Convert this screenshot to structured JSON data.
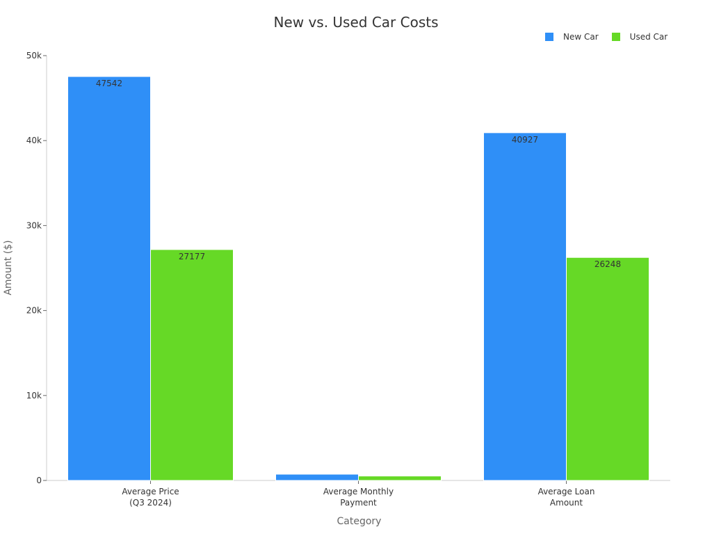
{
  "chart_data": {
    "type": "bar",
    "title": "New vs. Used Car Costs",
    "xlabel": "Category",
    "ylabel": "Amount ($)",
    "categories": [
      "Average Price\n(Q3 2024)",
      "Average Monthly\nPayment",
      "Average Loan\nAmount"
    ],
    "series": [
      {
        "name": "New Car",
        "color": "#2f8ff7",
        "values": [
          47542,
          738,
          40927
        ]
      },
      {
        "name": "Used Car",
        "color": "#66d926",
        "values": [
          27177,
          523,
          26248
        ]
      }
    ],
    "ylim": [
      0,
      50000
    ],
    "yticks": [
      0,
      10000,
      20000,
      30000,
      40000,
      50000
    ],
    "ytick_labels": [
      "0",
      "10k",
      "20k",
      "30k",
      "40k",
      "50k"
    ],
    "legend_position": "top-right",
    "grid": false
  }
}
